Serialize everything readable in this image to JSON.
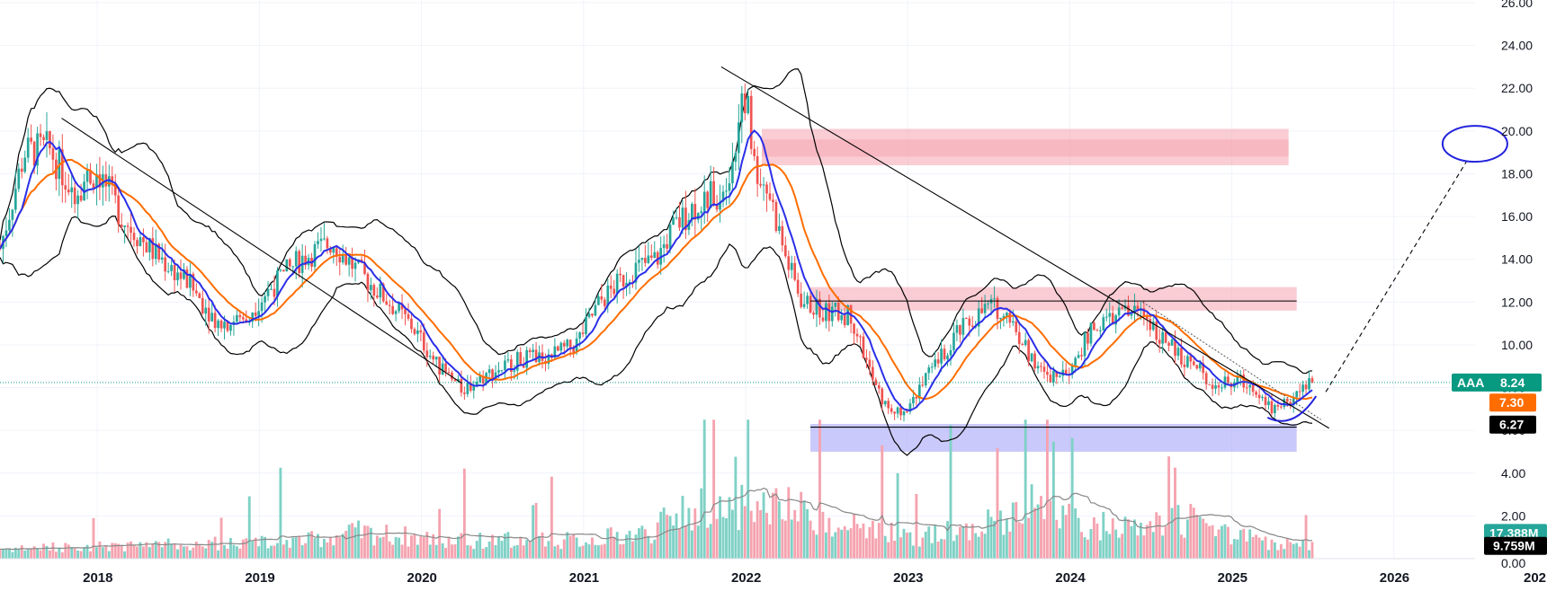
{
  "chart_data": {
    "type": "candlestick",
    "symbol": "AAA",
    "price_scale": {
      "ticks": [
        "2.00",
        "4.00",
        "6.00",
        "8.00",
        "10.00",
        "12.00",
        "14.00",
        "16.00",
        "18.00",
        "20.00",
        "22.00",
        "24.00",
        "26.00"
      ],
      "bottom_tick": "0.00",
      "range": [
        0,
        26
      ]
    },
    "time_scale": {
      "ticks": [
        "2018",
        "2019",
        "2020",
        "2021",
        "2022",
        "2023",
        "2024",
        "2025",
        "2026",
        "202"
      ],
      "range": [
        2017.4,
        2027.0
      ]
    },
    "tags": {
      "last": {
        "label": "AAA",
        "value": "8.24",
        "color": "#089981"
      },
      "ma": {
        "value": "7.30",
        "color": "#ff6d00"
      },
      "support": {
        "value": "6.27",
        "color": "#000000"
      },
      "volume": {
        "value": "17.388M",
        "color": "#26a69a"
      },
      "volume_ma": {
        "value": "9.759M",
        "color": "#000000"
      }
    },
    "last_price": 8.24,
    "anchors": [
      [
        2017.4,
        14.5
      ],
      [
        2017.55,
        19.0
      ],
      [
        2017.7,
        19.2
      ],
      [
        2017.85,
        17.2
      ],
      [
        2018.0,
        18.2
      ],
      [
        2018.15,
        16.0
      ],
      [
        2018.35,
        14.3
      ],
      [
        2018.55,
        13.0
      ],
      [
        2018.75,
        11.0
      ],
      [
        2018.9,
        11.2
      ],
      [
        2019.05,
        12.5
      ],
      [
        2019.25,
        14.0
      ],
      [
        2019.45,
        14.8
      ],
      [
        2019.6,
        13.5
      ],
      [
        2019.8,
        12.0
      ],
      [
        2019.95,
        10.8
      ],
      [
        2020.1,
        9.0
      ],
      [
        2020.25,
        7.9
      ],
      [
        2020.4,
        8.6
      ],
      [
        2020.6,
        9.3
      ],
      [
        2020.8,
        9.5
      ],
      [
        2020.95,
        10.0
      ],
      [
        2021.1,
        12.0
      ],
      [
        2021.3,
        13.5
      ],
      [
        2021.45,
        14.0
      ],
      [
        2021.55,
        15.4
      ],
      [
        2021.7,
        16.6
      ],
      [
        2021.85,
        17.2
      ],
      [
        2021.95,
        19.5
      ],
      [
        2022.0,
        22.0
      ],
      [
        2022.05,
        18.5
      ],
      [
        2022.15,
        17.0
      ],
      [
        2022.25,
        14.0
      ],
      [
        2022.35,
        12.0
      ],
      [
        2022.5,
        11.5
      ],
      [
        2022.65,
        11.4
      ],
      [
        2022.8,
        8.0
      ],
      [
        2022.9,
        6.7
      ],
      [
        2023.0,
        7.2
      ],
      [
        2023.15,
        8.8
      ],
      [
        2023.3,
        10.5
      ],
      [
        2023.5,
        11.8
      ],
      [
        2023.6,
        11.6
      ],
      [
        2023.75,
        9.6
      ],
      [
        2023.85,
        8.4
      ],
      [
        2024.0,
        9.0
      ],
      [
        2024.15,
        10.8
      ],
      [
        2024.3,
        11.4
      ],
      [
        2024.45,
        11.6
      ],
      [
        2024.6,
        10.0
      ],
      [
        2024.8,
        8.8
      ],
      [
        2024.9,
        8.1
      ],
      [
        2025.05,
        8.3
      ],
      [
        2025.15,
        8.0
      ],
      [
        2025.25,
        7.0
      ],
      [
        2025.35,
        7.4
      ],
      [
        2025.5,
        8.24
      ]
    ],
    "volume_anchors": [
      [
        2017.4,
        0.5
      ],
      [
        2018.5,
        0.7
      ],
      [
        2019.3,
        0.9
      ],
      [
        2019.6,
        1.3
      ],
      [
        2020.2,
        0.9
      ],
      [
        2021.0,
        0.9
      ],
      [
        2021.4,
        1.3
      ],
      [
        2021.6,
        2.2
      ],
      [
        2021.9,
        2.6
      ],
      [
        2022.2,
        2.5
      ],
      [
        2022.6,
        1.9
      ],
      [
        2023.0,
        1.0
      ],
      [
        2023.4,
        1.5
      ],
      [
        2023.75,
        2.6
      ],
      [
        2024.1,
        1.6
      ],
      [
        2024.5,
        1.5
      ],
      [
        2024.75,
        2.0
      ],
      [
        2025.0,
        1.2
      ],
      [
        2025.25,
        0.7
      ],
      [
        2025.5,
        0.8
      ]
    ],
    "zones": [
      {
        "kind": "resistance-high",
        "x": [
          2022.1,
          2025.35
        ],
        "y": [
          18.4,
          20.1
        ],
        "inner_y": [
          18.8,
          19.6
        ],
        "color": "#f5a3af"
      },
      {
        "kind": "resistance-mid",
        "x": [
          2022.4,
          2025.4
        ],
        "y": [
          11.6,
          12.7
        ],
        "color": "#f5a3af"
      },
      {
        "kind": "support",
        "x": [
          2022.4,
          2025.4
        ],
        "y": [
          5.0,
          6.3
        ],
        "color": "#9f9df8"
      }
    ],
    "lines": [
      {
        "kind": "downtrend-1",
        "from": [
          2017.78,
          20.6
        ],
        "to": [
          2020.25,
          8.2
        ]
      },
      {
        "kind": "downtrend-2",
        "from": [
          2021.85,
          23.0
        ],
        "to": [
          2025.6,
          6.1
        ]
      },
      {
        "kind": "horizontal-resistance",
        "from": [
          2022.4,
          12.05
        ],
        "to": [
          2025.4,
          12.05
        ]
      },
      {
        "kind": "horizontal-support",
        "from": [
          2022.4,
          6.15
        ],
        "to": [
          2025.4,
          6.15
        ]
      }
    ],
    "projection": {
      "from": [
        2025.58,
        7.8
      ],
      "to": [
        2026.45,
        18.6
      ],
      "target": [
        2026.5,
        19.4
      ]
    }
  }
}
